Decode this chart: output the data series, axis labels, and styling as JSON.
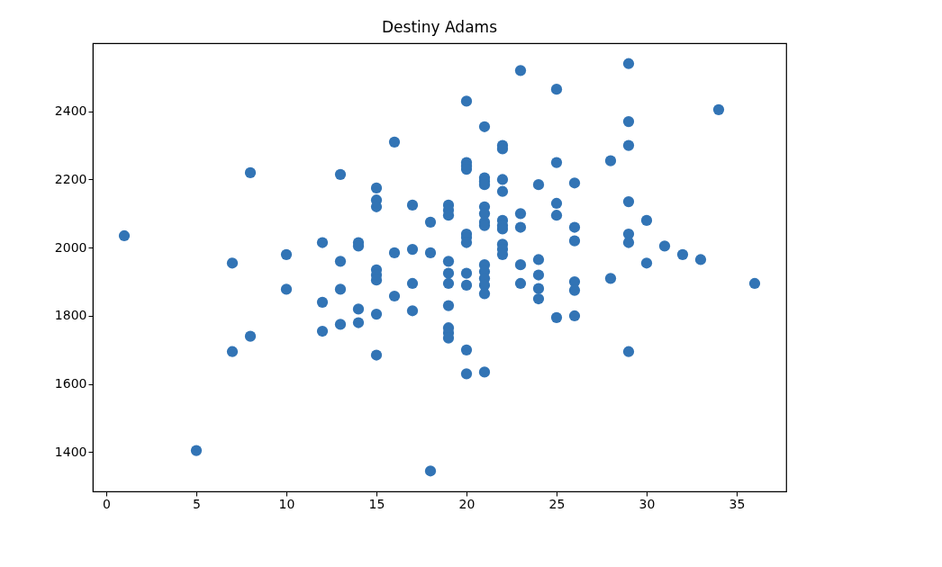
{
  "chart_data": {
    "type": "scatter",
    "title": "Destiny Adams",
    "series": [
      {
        "color": "#3274b5",
        "x": [
          1,
          5,
          7,
          7,
          8,
          8,
          10,
          10,
          12,
          12,
          12,
          13,
          13,
          13,
          13,
          14,
          14,
          14,
          14,
          15,
          15,
          15,
          15,
          15,
          15,
          15,
          15,
          16,
          16,
          16,
          17,
          17,
          17,
          17,
          18,
          18,
          18,
          19,
          19,
          19,
          19,
          19,
          19,
          19,
          19,
          19,
          19,
          20,
          20,
          20,
          20,
          20,
          20,
          20,
          20,
          20,
          20,
          20,
          21,
          21,
          21,
          21,
          21,
          21,
          21,
          21,
          21,
          21,
          21,
          21,
          21,
          21,
          22,
          22,
          22,
          22,
          22,
          22,
          22,
          22,
          22,
          22,
          23,
          23,
          23,
          23,
          23,
          24,
          24,
          24,
          24,
          24,
          25,
          25,
          25,
          25,
          25,
          26,
          26,
          26,
          26,
          26,
          26,
          28,
          28,
          29,
          29,
          29,
          29,
          29,
          29,
          29,
          30,
          30,
          31,
          32,
          33,
          34,
          36
        ],
        "values": [
          2035,
          1405,
          1955,
          1695,
          2220,
          1740,
          1980,
          1878,
          2015,
          1840,
          1755,
          2215,
          1960,
          1878,
          1775,
          2015,
          2005,
          1820,
          1780,
          2175,
          2140,
          2120,
          1935,
          1920,
          1905,
          1805,
          1685,
          2310,
          1985,
          1858,
          2125,
          1995,
          1895,
          1815,
          2075,
          1985,
          1345,
          2125,
          2110,
          2095,
          1960,
          1925,
          1895,
          1830,
          1765,
          1750,
          1735,
          2430,
          2250,
          2240,
          2230,
          2040,
          2030,
          2015,
          1925,
          1890,
          1700,
          1630,
          2355,
          2205,
          2195,
          2185,
          2120,
          2100,
          2075,
          2065,
          1950,
          1930,
          1910,
          1890,
          1865,
          1635,
          2300,
          2290,
          2200,
          2165,
          2080,
          2065,
          2055,
          2010,
          1995,
          1980,
          2520,
          2100,
          2060,
          1950,
          1895,
          2185,
          1965,
          1920,
          1880,
          1850,
          2465,
          2250,
          2130,
          2095,
          1795,
          2190,
          2060,
          2020,
          1900,
          1875,
          1800,
          2255,
          1910,
          2540,
          2370,
          2300,
          2135,
          2040,
          2015,
          1695,
          2080,
          1955,
          2005,
          1980,
          1965,
          2405,
          1895
        ]
      }
    ],
    "marker": "circle",
    "xlim": [
      -0.75,
      37.75
    ],
    "xticks": [
      0,
      5,
      10,
      15,
      20,
      25,
      30,
      35
    ],
    "ylim": [
      1285,
      2600
    ],
    "yticks": [
      1400,
      1600,
      1800,
      2000,
      2200,
      2400
    ],
    "grid": false
  }
}
